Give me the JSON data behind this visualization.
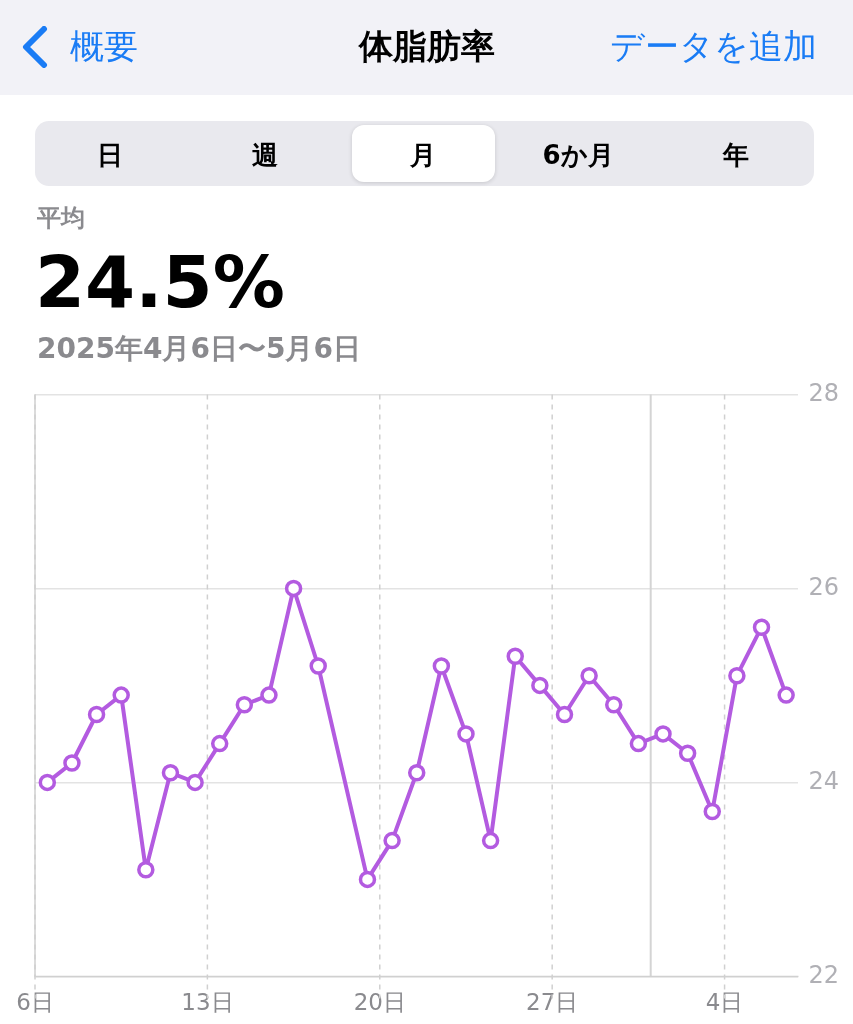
{
  "chart_data": {
    "type": "line",
    "title": "体脂肪率",
    "subtitle": "2025年4月6日〜5月6日",
    "annotations": [
      "概要",
      "データを追加",
      "日",
      "週",
      "月",
      "6か月",
      "年",
      "平均",
      "24.5%"
    ],
    "x": [
      "2025-04-06T12:00",
      "2025-04-07T12:00",
      "2025-04-08T12:00",
      "2025-04-09T12:00",
      "2025-04-10T12:00",
      "2025-04-11T12:00",
      "2025-04-12T12:00",
      "2025-04-13T12:00",
      "2025-04-14T12:00",
      "2025-04-15T12:00",
      "2025-04-16T12:00",
      "2025-04-17T12:00",
      "2025-04-19T12:00",
      "2025-04-20T12:00",
      "2025-04-21T12:00",
      "2025-04-22T12:00",
      "2025-04-23T12:00",
      "2025-04-24T12:00",
      "2025-04-25T12:00",
      "2025-04-26T12:00",
      "2025-04-27T12:00",
      "2025-04-28T12:00",
      "2025-04-29T12:00",
      "2025-04-30T12:00",
      "2025-05-01T12:00",
      "2025-05-02T12:00",
      "2025-05-03T12:00",
      "2025-05-04T12:00",
      "2025-05-05T12:00",
      "2025-05-06T12:00"
    ],
    "series": [
      {
        "color": "#b35be0",
        "values": [
          24.0,
          24.2,
          24.7,
          24.9,
          23.1,
          24.1,
          24.0,
          24.4,
          24.8,
          24.9,
          26.0,
          25.2,
          23.0,
          23.4,
          24.1,
          25.2,
          24.5,
          23.4,
          25.3,
          25.0,
          24.7,
          25.1,
          24.8,
          24.4,
          24.5,
          24.3,
          23.7,
          25.1,
          25.6,
          24.9
        ]
      }
    ],
    "xlim": [
      "2025-04-06",
      "2025-05-07"
    ],
    "xticks": [
      {
        "value": "2025-04-06",
        "label": "6日"
      },
      {
        "value": "2025-04-13",
        "label": "13日"
      },
      {
        "value": "2025-04-20",
        "label": "20日"
      },
      {
        "value": "2025-04-27",
        "label": "27日"
      },
      {
        "value": "2025-05-04",
        "label": "4日"
      }
    ],
    "ylim": [
      22,
      28
    ],
    "yticks": [
      22,
      24,
      26,
      28
    ],
    "ref_lines": [
      {
        "axis": "x",
        "value": "2025-05-01",
        "color": "#d4d4d4"
      }
    ],
    "grid": true,
    "marker": "circle",
    "line_style": "solid",
    "legend": false
  }
}
